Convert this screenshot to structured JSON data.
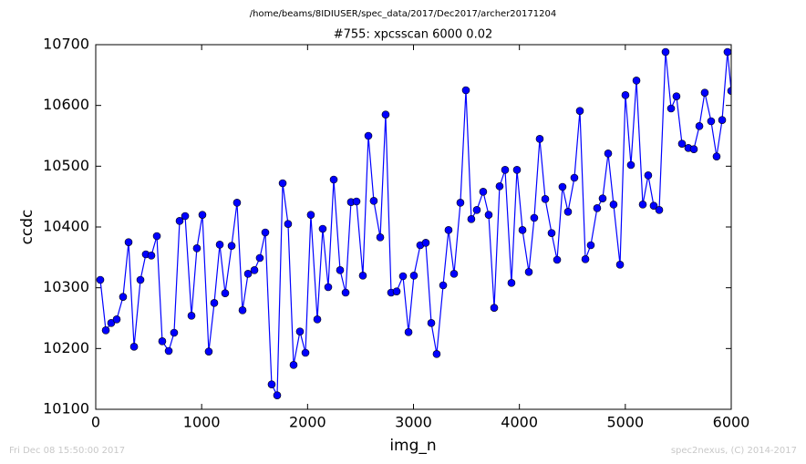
{
  "chart_data": {
    "type": "line",
    "title": "/home/beams/8IDIUSER/spec_data/2017/Dec2017/archer20171204",
    "subtitle": "#755: xpcsscan 6000 0.02",
    "x_label": "img_n",
    "y_label": "ccdc",
    "footer_left": "Fri Dec 08 15:50:00 2017",
    "footer_right": "spec2nexus, (C) 2014-2017",
    "xlim": [
      0,
      6000
    ],
    "ylim": [
      10100,
      10700
    ],
    "xticks": [
      0,
      1000,
      2000,
      3000,
      4000,
      5000,
      6000
    ],
    "yticks": [
      10100,
      10200,
      10300,
      10400,
      10500,
      10600,
      10700
    ],
    "grid": false,
    "series": [
      {
        "color": "#0000ff",
        "x": [
          43,
          95,
          146,
          198,
          258,
          310,
          362,
          422,
          473,
          525,
          577,
          628,
          689,
          740,
          792,
          844,
          904,
          955,
          1007,
          1067,
          1119,
          1171,
          1222,
          1283,
          1334,
          1386,
          1438,
          1498,
          1549,
          1601,
          1661,
          1713,
          1765,
          1816,
          1868,
          1928,
          1980,
          2031,
          2092,
          2143,
          2195,
          2247,
          2307,
          2359,
          2410,
          2462,
          2522,
          2574,
          2625,
          2686,
          2737,
          2789,
          2841,
          2901,
          2953,
          3004,
          3064,
          3116,
          3168,
          3219,
          3280,
          3331,
          3383,
          3443,
          3495,
          3546,
          3598,
          3658,
          3710,
          3762,
          3813,
          3865,
          3925,
          3977,
          4029,
          4089,
          4140,
          4192,
          4244,
          4304,
          4356,
          4407,
          4459,
          4519,
          4571,
          4623,
          4674,
          4734,
          4786,
          4838,
          4889,
          4950,
          5001,
          5053,
          5105,
          5165,
          5216,
          5268,
          5320,
          5380,
          5432,
          5483,
          5535,
          5595,
          5647,
          5699,
          5750,
          5810,
          5862,
          5914,
          5965,
          6000
        ],
        "values": [
          10313,
          10230,
          10242,
          10248,
          10285,
          10375,
          10203,
          10313,
          10355,
          10353,
          10385,
          10212,
          10196,
          10226,
          10410,
          10418,
          10254,
          10365,
          10420,
          10195,
          10275,
          10371,
          10291,
          10369,
          10440,
          10263,
          10323,
          10329,
          10349,
          10391,
          10141,
          10123,
          10472,
          10405,
          10173,
          10228,
          10193,
          10420,
          10248,
          10397,
          10301,
          10478,
          10329,
          10292,
          10441,
          10442,
          10320,
          10550,
          10443,
          10383,
          10585,
          10292,
          10294,
          10319,
          10227,
          10320,
          10370,
          10374,
          10242,
          10191,
          10304,
          10395,
          10323,
          10440,
          10625,
          10413,
          10428,
          10458,
          10420,
          10267,
          10467,
          10494,
          10308,
          10494,
          10395,
          10326,
          10415,
          10545,
          10446,
          10390,
          10346,
          10466,
          10425,
          10481,
          10591,
          10347,
          10370,
          10431,
          10447,
          10521,
          10437,
          10338,
          10617,
          10502,
          10641,
          10437,
          10485,
          10435,
          10428,
          10688,
          10595,
          10615,
          10537,
          10530,
          10528,
          10566,
          10621,
          10574,
          10516,
          10576,
          10688,
          10624
        ]
      }
    ]
  }
}
